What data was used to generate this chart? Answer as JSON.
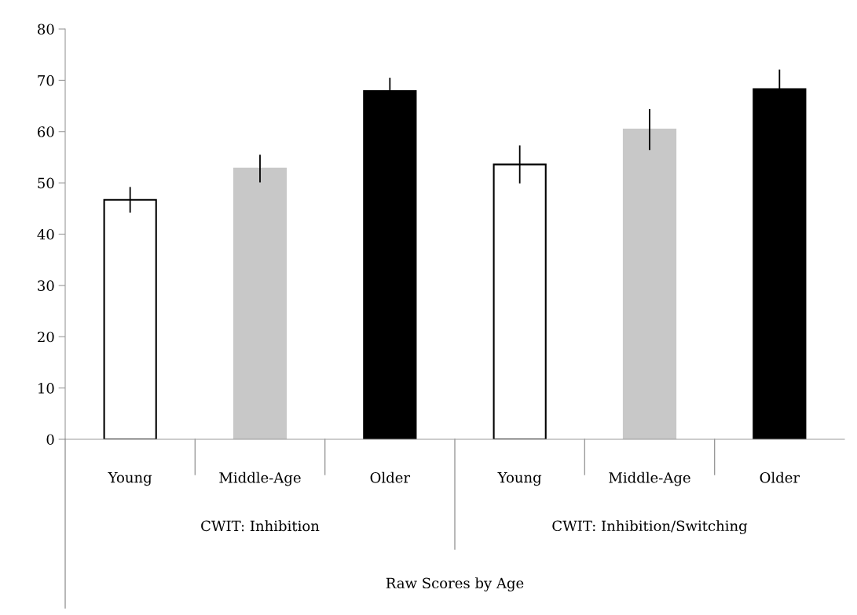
{
  "chart_data": {
    "type": "bar",
    "categories": [
      "Young",
      "Middle-Age",
      "Older",
      "Young",
      "Middle-Age",
      "Older"
    ],
    "values": [
      46.7,
      52.8,
      67.9,
      53.6,
      60.4,
      68.3
    ],
    "errors": [
      2.5,
      2.7,
      2.6,
      3.7,
      4.0,
      3.8
    ],
    "colors": [
      "#ffffff",
      "#c8c8c8",
      "#000000",
      "#ffffff",
      "#c8c8c8",
      "#000000"
    ],
    "ylim": [
      0,
      80
    ],
    "yticks": [
      0,
      10,
      20,
      30,
      40,
      50,
      60,
      70,
      80
    ],
    "annotations": [
      "CWIT: Inhibition",
      "CWIT: Inhibition/Switching",
      "Raw Scores by Age"
    ],
    "grid": false,
    "legend": false
  }
}
